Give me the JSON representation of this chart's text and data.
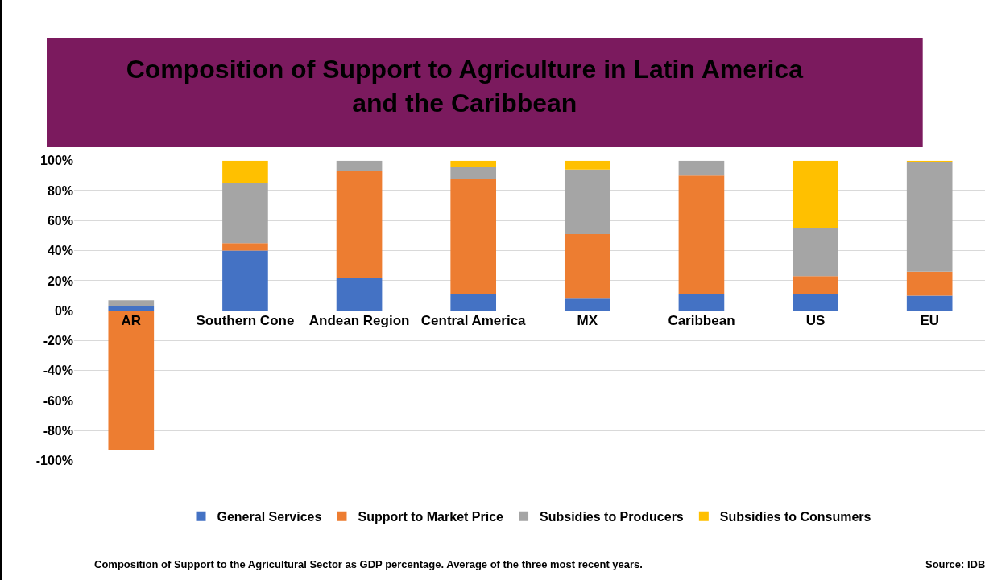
{
  "chart_data": {
    "type": "bar",
    "title": "Composition of Support to Agriculture in Latin America\nand the Caribbean",
    "categories": [
      "AR",
      "Southern Cone",
      "Andean Region",
      "Central America",
      "MX",
      "Caribbean",
      "US",
      "EU"
    ],
    "series": [
      {
        "name": "General Services",
        "color": "#4472c4",
        "values": [
          3,
          40,
          22,
          11,
          8,
          11,
          11,
          10
        ]
      },
      {
        "name": "Support to Market Price",
        "color": "#ed7d31",
        "values": [
          -93,
          5,
          71,
          77,
          43,
          79,
          12,
          16
        ]
      },
      {
        "name": "Subsidies to Producers",
        "color": "#a5a5a5",
        "values": [
          4,
          40,
          7,
          8,
          43,
          10,
          32,
          73
        ]
      },
      {
        "name": "Subsidies to Consumers",
        "color": "#ffc000",
        "values": [
          0,
          15,
          0,
          4,
          6,
          0,
          45,
          1
        ]
      }
    ],
    "stacked": true,
    "ylim": [
      -100,
      100
    ],
    "yticks": [
      {
        "value": -100,
        "label": "-100%"
      },
      {
        "value": -80,
        "label": "-80%"
      },
      {
        "value": -60,
        "label": "-60%"
      },
      {
        "value": -40,
        "label": "-40%"
      },
      {
        "value": -20,
        "label": "-20%"
      },
      {
        "value": 0,
        "label": "0%"
      },
      {
        "value": 20,
        "label": "20%"
      },
      {
        "value": 40,
        "label": "40%"
      },
      {
        "value": 60,
        "label": "60%"
      },
      {
        "value": 80,
        "label": "80%"
      },
      {
        "value": 100,
        "label": "100%"
      }
    ],
    "grid": "y",
    "legend": "bottom",
    "annotations": [
      "Composition of Support to the Agricultural Sector as GDP percentage. Average of the three most recent years.",
      "Source: IDB"
    ]
  }
}
